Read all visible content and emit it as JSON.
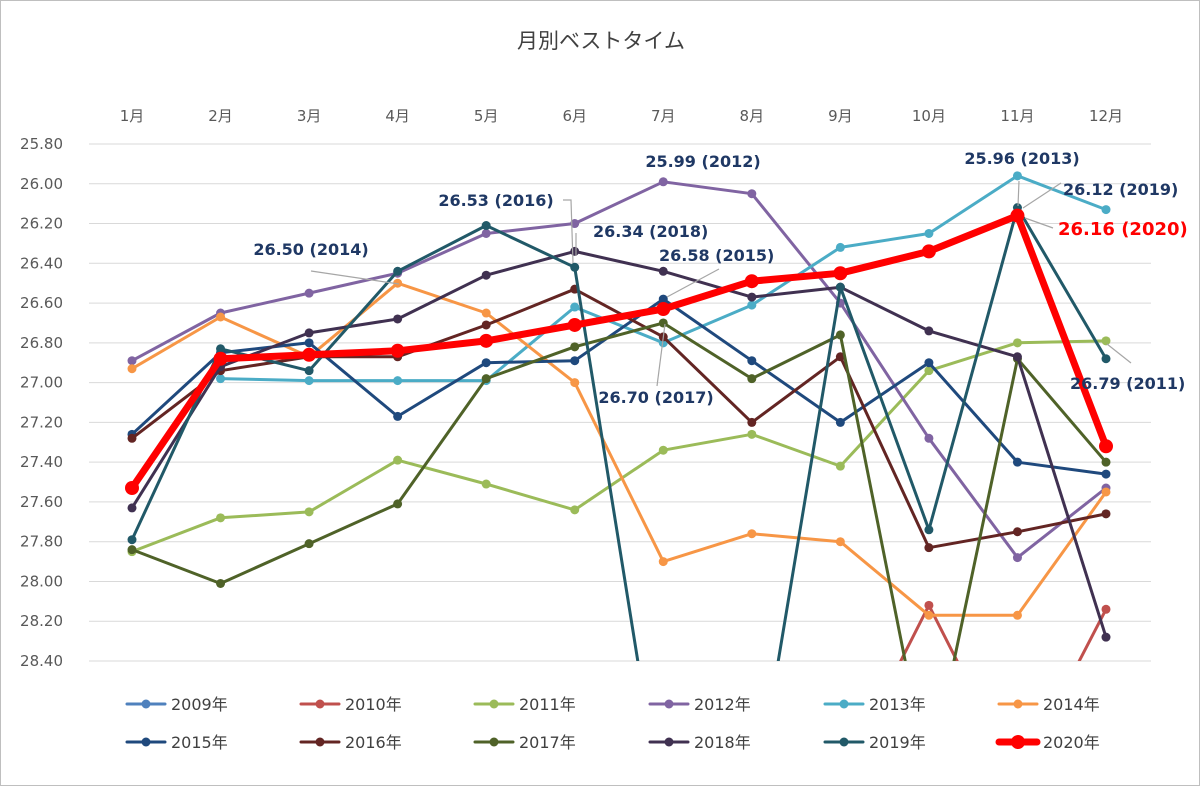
{
  "chart_data": {
    "type": "line",
    "title": "月別ベストタイム",
    "xlabel": "",
    "ylabel": "",
    "x_position": "top",
    "y_inverted": true,
    "grid": true,
    "legend_position": "bottom",
    "categories": [
      "1月",
      "2月",
      "3月",
      "4月",
      "5月",
      "6月",
      "7月",
      "8月",
      "9月",
      "10月",
      "11月",
      "12月"
    ],
    "yticks": [
      "25.80",
      "26.00",
      "26.20",
      "26.40",
      "26.60",
      "26.80",
      "27.00",
      "27.20",
      "27.40",
      "27.60",
      "27.80",
      "28.00",
      "28.20",
      "28.40"
    ],
    "ylim": [
      25.8,
      28.4
    ],
    "series": [
      {
        "name": "2009年",
        "color": "#4f81bd",
        "width": 3,
        "values": [
          null,
          null,
          null,
          null,
          null,
          null,
          null,
          null,
          null,
          null,
          null,
          null
        ]
      },
      {
        "name": "2010年",
        "color": "#c0504d",
        "width": 3,
        "values": [
          null,
          null,
          null,
          null,
          null,
          null,
          null,
          null,
          29.0,
          28.12,
          29.0,
          28.14
        ]
      },
      {
        "name": "2011年",
        "color": "#9bbb59",
        "width": 3,
        "values": [
          27.85,
          27.68,
          27.65,
          27.39,
          27.51,
          27.64,
          27.34,
          27.26,
          27.42,
          26.94,
          26.8,
          26.79
        ]
      },
      {
        "name": "2012年",
        "color": "#8064a2",
        "width": 3,
        "values": [
          26.89,
          26.65,
          26.55,
          26.45,
          26.25,
          26.2,
          25.99,
          26.05,
          26.6,
          27.28,
          27.88,
          27.53
        ]
      },
      {
        "name": "2013年",
        "color": "#4bacc6",
        "width": 3,
        "values": [
          null,
          26.98,
          26.99,
          26.99,
          26.99,
          26.62,
          26.8,
          26.61,
          26.32,
          26.25,
          25.96,
          26.13
        ]
      },
      {
        "name": "2014年",
        "color": "#f79646",
        "width": 3,
        "values": [
          26.93,
          26.67,
          26.87,
          26.5,
          26.65,
          27.0,
          27.9,
          27.76,
          27.8,
          28.17,
          28.17,
          27.55
        ]
      },
      {
        "name": "2015年",
        "color": "#1f497d",
        "width": 3,
        "values": [
          27.26,
          26.85,
          26.8,
          27.17,
          26.9,
          26.89,
          26.58,
          26.89,
          27.2,
          26.9,
          27.4,
          27.46
        ]
      },
      {
        "name": "2016年",
        "color": "#632523",
        "width": 3,
        "values": [
          27.28,
          26.94,
          26.87,
          26.87,
          26.71,
          26.53,
          26.77,
          27.2,
          26.87,
          27.83,
          27.75,
          27.66
        ]
      },
      {
        "name": "2017年",
        "color": "#4f6228",
        "width": 3,
        "values": [
          27.84,
          28.01,
          27.81,
          27.61,
          26.98,
          26.82,
          26.7,
          26.98,
          26.76,
          29.0,
          26.88,
          27.4
        ]
      },
      {
        "name": "2018年",
        "color": "#403151",
        "width": 3,
        "values": [
          27.63,
          26.92,
          26.75,
          26.68,
          26.46,
          26.34,
          26.44,
          26.57,
          26.52,
          26.74,
          26.87,
          28.28
        ]
      },
      {
        "name": "2019年",
        "color": "#215968",
        "width": 3,
        "values": [
          27.79,
          26.83,
          26.94,
          26.44,
          26.21,
          26.42,
          29.2,
          29.2,
          26.52,
          27.74,
          26.12,
          26.88
        ]
      },
      {
        "name": "2020年",
        "color": "#ff0000",
        "width": 7,
        "values": [
          27.53,
          26.88,
          26.86,
          26.84,
          26.79,
          26.71,
          26.63,
          26.49,
          26.45,
          26.34,
          26.16,
          27.32
        ]
      }
    ],
    "annotations": [
      {
        "text": "26.50 (2014)",
        "color": "#1f3864"
      },
      {
        "text": "26.53 (2016)",
        "color": "#1f3864"
      },
      {
        "text": "26.34 (2018)",
        "color": "#1f3864"
      },
      {
        "text": "25.99 (2012)",
        "color": "#1f3864"
      },
      {
        "text": "26.58 (2015)",
        "color": "#1f3864"
      },
      {
        "text": "26.70 (2017)",
        "color": "#1f3864"
      },
      {
        "text": "25.96 (2013)",
        "color": "#1f3864"
      },
      {
        "text": "26.12 (2019)",
        "color": "#1f3864"
      },
      {
        "text": "26.16 (2020)",
        "color": "#ff0000"
      },
      {
        "text": "26.79 (2011)",
        "color": "#1f3864"
      }
    ]
  }
}
